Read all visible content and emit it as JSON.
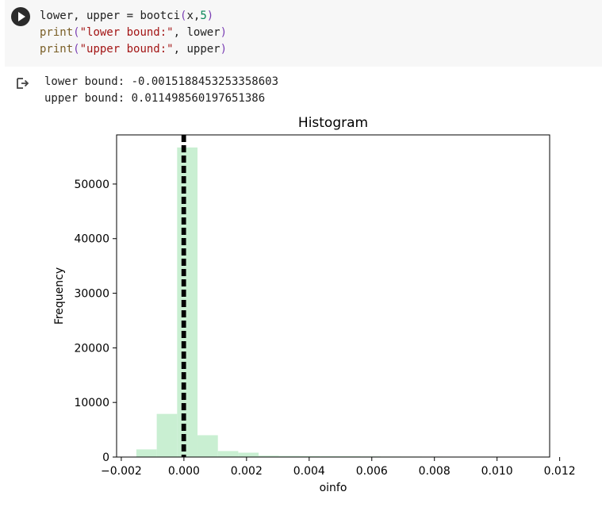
{
  "cell": {
    "run_button_icon": "play-icon",
    "code_lines": [
      [
        {
          "t": "lower, upper = ",
          "c": "tok-plain"
        },
        {
          "t": "bootci",
          "c": "tok-plain"
        },
        {
          "t": "(",
          "c": "tok-paren"
        },
        {
          "t": "x,",
          "c": "tok-plain"
        },
        {
          "t": "5",
          "c": "tok-num"
        },
        {
          "t": ")",
          "c": "tok-paren"
        }
      ],
      [
        {
          "t": "print",
          "c": "tok-func"
        },
        {
          "t": "(",
          "c": "tok-paren"
        },
        {
          "t": "\"lower bound:\"",
          "c": "tok-str"
        },
        {
          "t": ", lower",
          "c": "tok-plain"
        },
        {
          "t": ")",
          "c": "tok-paren"
        }
      ],
      [
        {
          "t": "print",
          "c": "tok-func"
        },
        {
          "t": "(",
          "c": "tok-paren"
        },
        {
          "t": "\"upper bound:\"",
          "c": "tok-str"
        },
        {
          "t": ", upper",
          "c": "tok-plain"
        },
        {
          "t": ")",
          "c": "tok-paren"
        }
      ]
    ]
  },
  "output": {
    "icon": "output-redirect-icon",
    "lines": [
      "lower bound: -0.0015188453253358603",
      "upper bound: 0.011498560197651386"
    ]
  },
  "chart_data": {
    "type": "bar",
    "title": "Histogram",
    "xlabel": "oinfo",
    "ylabel": "Frequency",
    "xlim": [
      -0.00215,
      0.01168
    ],
    "ylim": [
      0,
      59000
    ],
    "xticks": [
      -0.002,
      0.0,
      0.002,
      0.004,
      0.006,
      0.008,
      0.01,
      0.012
    ],
    "xtick_labels": [
      "−0.002",
      "0.000",
      "0.002",
      "0.004",
      "0.006",
      "0.008",
      "0.010",
      "0.012"
    ],
    "yticks": [
      0,
      10000,
      20000,
      30000,
      40000,
      50000
    ],
    "ytick_labels": [
      "0",
      "10000",
      "20000",
      "30000",
      "40000",
      "50000"
    ],
    "bin_edges": [
      -0.0015188,
      -0.0008679,
      -0.000217,
      0.0004339,
      0.0010848,
      0.0017357,
      0.0023866,
      0.0030375,
      0.0036884,
      0.0043393,
      0.0049902,
      0.0056411,
      0.006292,
      0.0069429,
      0.0075938,
      0.0082447,
      0.0088956,
      0.0095465,
      0.0101974,
      0.0108483,
      0.0114986
    ],
    "values": [
      1400,
      7900,
      56700,
      4000,
      1100,
      800,
      250,
      200,
      180,
      150,
      140,
      120,
      100,
      90,
      80,
      70,
      60,
      50,
      40,
      30
    ],
    "bar_color": "#c9efd2",
    "vlines": [
      -4e-05,
      3e-05
    ],
    "vline_color": "#000000",
    "grid": false
  }
}
